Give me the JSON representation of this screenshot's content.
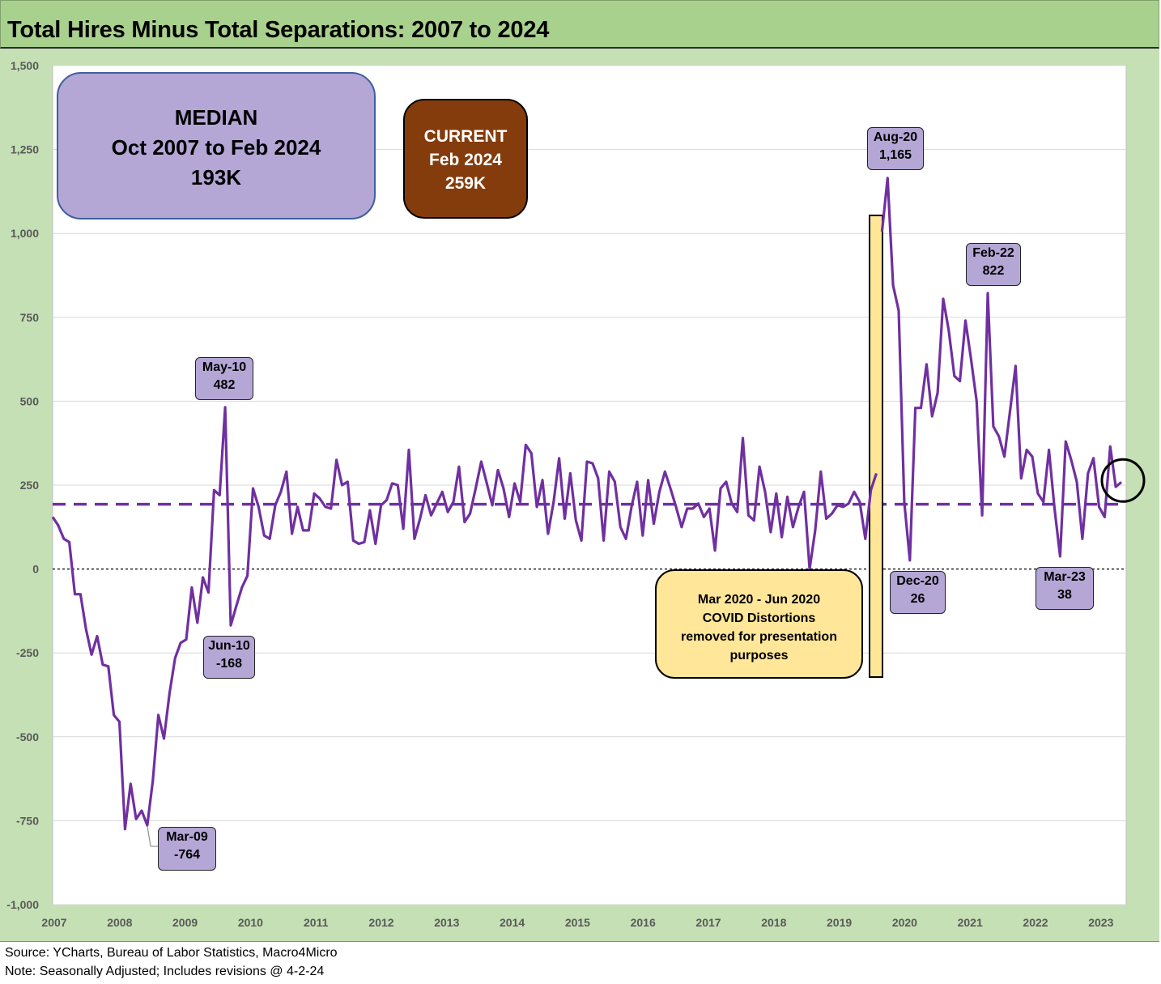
{
  "title": "Total Hires Minus Total Separations: 2007 to 2024",
  "footer": {
    "source": "Source: YCharts, Bureau of Labor Statistics, Macro4Micro",
    "note": "Note: Seasonally Adjusted; Includes revisions @ 4-2-24"
  },
  "median_box": {
    "line1": "MEDIAN",
    "line2": "Oct 2007 to Feb 2024",
    "line3": "193K"
  },
  "current_box": {
    "line1": "CURRENT",
    "line2": "Feb 2024",
    "line3": "259K"
  },
  "covid_box": {
    "line1": "Mar 2020 - Jun 2020",
    "line2": "COVID Distortions",
    "line3": "removed for presentation",
    "line4": "purposes"
  },
  "callouts": [
    {
      "label": "May-10",
      "value": "482"
    },
    {
      "label": "Jun-10",
      "value": "-168"
    },
    {
      "label": "Mar-09",
      "value": "-764"
    },
    {
      "label": "Aug-20",
      "value": "1,165"
    },
    {
      "label": "Dec-20",
      "value": "26"
    },
    {
      "label": "Feb-22",
      "value": "822"
    },
    {
      "label": "Mar-23",
      "value": "38"
    }
  ],
  "colors": {
    "background": "#c5e0b4",
    "title_bar": "#a9d18e",
    "series_line": "#7030a0",
    "callout_fill": "#b4a7d6",
    "current_fill": "#843c0c",
    "covid_fill": "#ffe699"
  },
  "chart_data": {
    "type": "line",
    "title": "Total Hires Minus Total Separations: 2007 to 2024",
    "xlabel": "",
    "ylabel": "",
    "ylim": [
      -1000,
      1500
    ],
    "yticks": [
      1500,
      1250,
      1000,
      750,
      500,
      250,
      0,
      -250,
      -500,
      -750,
      -1000
    ],
    "ytick_labels": [
      "1,500",
      "1,250",
      "1,000",
      "750",
      "500",
      "250",
      "0",
      "-250",
      "-500",
      "-750",
      "-1,000"
    ],
    "xtick_labels": [
      "2007",
      "2008",
      "2009",
      "2010",
      "2011",
      "2012",
      "2013",
      "2014",
      "2015",
      "2016",
      "2017",
      "2018",
      "2019",
      "2020",
      "2021",
      "2022",
      "2023"
    ],
    "grid": true,
    "median": 193,
    "zero_line": 0,
    "gap_after_index": 148,
    "series": [
      {
        "values": [
          155,
          130,
          90,
          80,
          -75,
          -75,
          -180,
          -255,
          -200,
          -285,
          -290,
          -435,
          -455,
          -775,
          -640,
          -745,
          -720,
          -764,
          -630,
          -435,
          -505,
          -370,
          -265,
          -220,
          -210,
          -55,
          -160,
          -25,
          -70,
          235,
          220,
          482,
          -168,
          -110,
          -55,
          -20,
          240,
          185,
          100,
          90,
          190,
          230,
          290,
          105,
          185,
          115,
          115,
          225,
          210,
          185,
          180,
          325,
          250,
          260,
          85,
          75,
          80,
          175,
          75,
          190,
          205,
          255,
          250,
          120,
          355,
          90,
          150,
          220,
          160,
          195,
          230,
          170,
          200,
          305,
          140,
          165,
          240,
          320,
          255,
          190,
          295,
          240,
          155,
          255,
          200,
          370,
          345,
          185,
          265,
          105,
          200,
          330,
          150,
          285,
          145,
          85,
          320,
          315,
          270,
          85,
          290,
          260,
          125,
          90,
          185,
          260,
          100,
          265,
          135,
          230,
          290,
          240,
          185,
          125,
          180,
          180,
          195,
          155,
          180,
          55,
          240,
          260,
          195,
          170,
          390,
          160,
          145,
          305,
          230,
          110,
          225,
          95,
          215,
          125,
          185,
          230,
          0,
          115,
          290,
          150,
          165,
          190,
          185,
          195,
          230,
          200,
          90,
          235,
          285,
          1005,
          1165,
          845,
          770,
          200,
          26,
          480,
          480,
          610,
          455,
          525,
          805,
          710,
          575,
          560,
          740,
          625,
          500,
          160,
          822,
          425,
          395,
          335,
          470,
          605,
          270,
          355,
          335,
          225,
          200,
          355,
          180,
          38,
          380,
          325,
          260,
          90,
          285,
          330,
          185,
          155,
          365,
          245,
          259
        ]
      }
    ]
  }
}
